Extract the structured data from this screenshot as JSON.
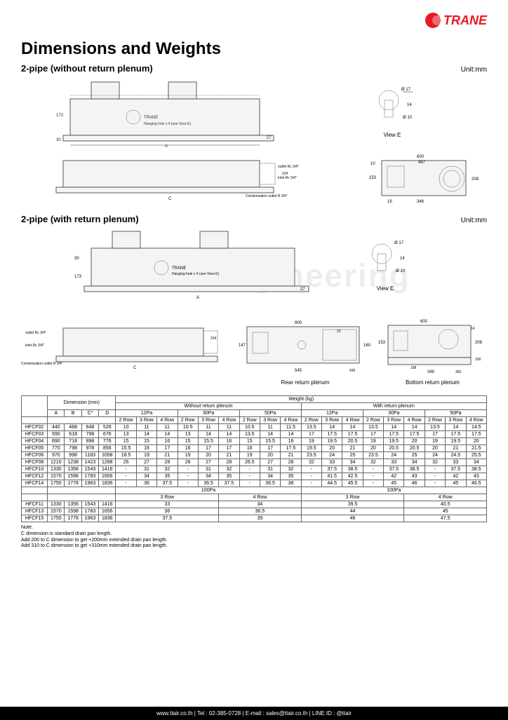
{
  "brand": "TRANE",
  "brand_color": "#e41b23",
  "page_title": "Dimensions and Weights",
  "section1_title": "2-pipe (without return plenum)",
  "section2_title": "2-pipe (with return plenum)",
  "unit_label": "Unit:mm",
  "view_e_label": "View E",
  "rear_label": "Rear return plenum",
  "bottom_label": "Bottom return plenum",
  "watermark": "TT Air Engineering",
  "drawing_notes": {
    "hanging": "Hanging hole x 4 (see View E)",
    "outlet": "outlet Rc 3/4\"",
    "inlet": "inlet Rc 3/4\"",
    "cond": "Condensation outlet R 3/4\""
  },
  "table": {
    "header_top": [
      "Dimension (mm)",
      "Weight (kg)"
    ],
    "col_groups_left": [
      "A",
      "B",
      "C*",
      "D"
    ],
    "pa_groups": [
      "12Pa",
      "30Pa",
      "50Pa"
    ],
    "row_labels": [
      "2 Row",
      "3 Row",
      "4 Row"
    ],
    "plenum_groups": [
      "Without return plenum",
      "With return plenum"
    ],
    "rows": [
      {
        "m": "HFCF02",
        "d": [
          "440",
          "468",
          "648",
          "526"
        ],
        "w1": [
          "10",
          "11",
          "11",
          "10.5",
          "11",
          "11",
          "10.5",
          "11",
          "11.5"
        ],
        "w2": [
          "13.5",
          "14",
          "14",
          "13.5",
          "14",
          "14",
          "13.5",
          "14",
          "14.5"
        ]
      },
      {
        "m": "HFCF03",
        "d": [
          "590",
          "618",
          "798",
          "676"
        ],
        "w1": [
          "13",
          "14",
          "14",
          "13",
          "14",
          "14",
          "13.5",
          "14",
          "14"
        ],
        "w2": [
          "17",
          "17.5",
          "17.5",
          "17",
          "17.5",
          "17.5",
          "17",
          "17.5",
          "17.5"
        ]
      },
      {
        "m": "HFCF04",
        "d": [
          "690",
          "718",
          "898",
          "776"
        ],
        "w1": [
          "15",
          "15",
          "16",
          "15",
          "15.5",
          "16",
          "15",
          "15.5",
          "16"
        ],
        "w2": [
          "19",
          "19.5",
          "20.5",
          "19",
          "19.5",
          "20",
          "19",
          "19.5",
          "20"
        ]
      },
      {
        "m": "HFCF05",
        "d": [
          "770",
          "798",
          "978",
          "856"
        ],
        "w1": [
          "15.5",
          "16",
          "17",
          "16",
          "17",
          "17",
          "16",
          "17",
          "17.5"
        ],
        "w2": [
          "19.5",
          "20",
          "21",
          "20",
          "20.5",
          "20.5",
          "20",
          "21",
          "21.5"
        ]
      },
      {
        "m": "HFCF06",
        "d": [
          "970",
          "998",
          "1183",
          "1058"
        ],
        "w1": [
          "18.5",
          "19",
          "21",
          "19",
          "20",
          "21",
          "19",
          "20",
          "21"
        ],
        "w2": [
          "23.5",
          "24",
          "25",
          "23.5",
          "24",
          "25",
          "24",
          "24.5",
          "25.5"
        ]
      },
      {
        "m": "HFCF08",
        "d": [
          "1210",
          "1238",
          "1423",
          "1298"
        ],
        "w1": [
          "26",
          "27",
          "28",
          "26",
          "27",
          "28",
          "26.5",
          "27",
          "28"
        ],
        "w2": [
          "32",
          "33",
          "34",
          "32",
          "33",
          "34",
          "32",
          "33",
          "34"
        ]
      },
      {
        "m": "HFCF10",
        "d": [
          "1330",
          "1358",
          "1543",
          "1416"
        ],
        "w1": [
          "-",
          "31",
          "32",
          "-",
          "31",
          "32",
          "-",
          "31",
          "32"
        ],
        "w2": [
          "-",
          "37.5",
          "38.5",
          "-",
          "37.5",
          "38.5",
          "-",
          "37.5",
          "38.5"
        ]
      },
      {
        "m": "HFCF12",
        "d": [
          "1570",
          "1598",
          "1783",
          "1656"
        ],
        "w1": [
          "-",
          "34",
          "35",
          "-",
          "34",
          "35",
          "-",
          "34",
          "35"
        ],
        "w2": [
          "-",
          "41.5",
          "42.5",
          "-",
          "42",
          "43",
          "-",
          "42",
          "43"
        ]
      },
      {
        "m": "HFCF14",
        "d": [
          "1750",
          "1778",
          "1963",
          "1836"
        ],
        "w1": [
          "-",
          "36",
          "37.5",
          "-",
          "36.5",
          "37.5",
          "-",
          "36.5",
          "38"
        ],
        "w2": [
          "-",
          "44.5",
          "45.5",
          "-",
          "45",
          "46",
          "-",
          "45",
          "46.5"
        ]
      }
    ],
    "hundred_pa_label": "100Pa",
    "hundred_cols": [
      "3 Row",
      "4 Row"
    ],
    "rows2": [
      {
        "m": "HFCF11",
        "d": [
          "1330",
          "1356",
          "1543",
          "1416"
        ],
        "a": [
          "33",
          "34"
        ],
        "b": [
          "39.5",
          "40.5"
        ]
      },
      {
        "m": "HFCF13",
        "d": [
          "1570",
          "1598",
          "1783",
          "1656"
        ],
        "a": [
          "36",
          "36.5"
        ],
        "b": [
          "44",
          "45"
        ]
      },
      {
        "m": "HFCF15",
        "d": [
          "1750",
          "1778",
          "1963",
          "1836"
        ],
        "a": [
          "37.5",
          "39"
        ],
        "b": [
          "46",
          "47.5"
        ]
      }
    ]
  },
  "note_title": "Note:",
  "note_lines": [
    "C dimension is standard drain pan length.",
    "Add 200 to C dimension to get +200mm extended drain pan length.",
    "Add 310 to C dimension to get +310mm extended drain pan length."
  ],
  "footer_text": "www.ttair.co.th | Tel : 02-385-0728 | E-mail : sales@ttair.co.th | LINE ID : @ttair"
}
